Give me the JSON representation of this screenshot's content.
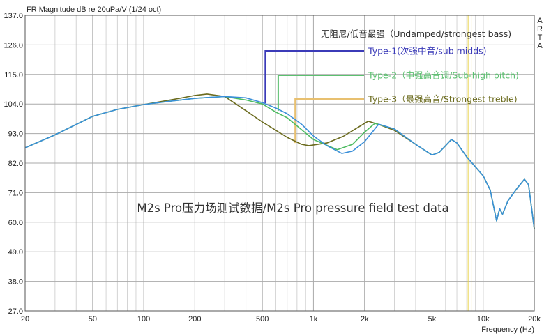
{
  "chart_data": {
    "type": "line",
    "title": "FR Magnitude dB re 20uPa/V (1/24 oct)",
    "xlabel": "Frequency (Hz)",
    "ylabel": "",
    "watermark": "ARTA",
    "annotation": "M2s Pro压力场测试数据/M2s Pro pressure field test data",
    "xscale": "log",
    "xlim": [
      20,
      20000
    ],
    "ylim": [
      27,
      137
    ],
    "grid": true,
    "x_ticks": [
      {
        "v": 20,
        "label": "20"
      },
      {
        "v": 50,
        "label": "50"
      },
      {
        "v": 100,
        "label": "100"
      },
      {
        "v": 200,
        "label": "200"
      },
      {
        "v": 500,
        "label": "500"
      },
      {
        "v": 1000,
        "label": "1k"
      },
      {
        "v": 2000,
        "label": "2k"
      },
      {
        "v": 5000,
        "label": "5k"
      },
      {
        "v": 10000,
        "label": "10k"
      },
      {
        "v": 20000,
        "label": "20k"
      }
    ],
    "y_ticks": [
      {
        "v": 137,
        "label": "137.0"
      },
      {
        "v": 126,
        "label": "126.0"
      },
      {
        "v": 115,
        "label": "115.0"
      },
      {
        "v": 104,
        "label": "104.0"
      },
      {
        "v": 93,
        "label": "93.0"
      },
      {
        "v": 82,
        "label": "82.0"
      },
      {
        "v": 71,
        "label": "71.0"
      },
      {
        "v": 60,
        "label": "60.0"
      },
      {
        "v": 49,
        "label": "49.0"
      },
      {
        "v": 38,
        "label": "38.0"
      },
      {
        "v": 27,
        "label": "27.0"
      }
    ],
    "legend_heading": "无阻尼/低音最强（Undamped/strongest bass)",
    "series": [
      {
        "name": "Type-1(次强中音/sub midds)",
        "color": "#3a8fd9",
        "legend_color": "#3b3bb8",
        "marker_freq": 520,
        "marker_db": 104.3,
        "x": [
          20,
          30,
          50,
          70,
          100,
          150,
          200,
          250,
          300,
          400,
          500,
          600,
          700,
          850,
          1000,
          1200,
          1470,
          1700,
          2000,
          2425,
          3000,
          4000,
          5000,
          5500,
          6500,
          7000,
          8000,
          10000,
          11000,
          12000,
          12500,
          13000,
          14000,
          16000,
          17500,
          18500,
          20000
        ],
        "y": [
          87.7,
          92.5,
          99.4,
          102,
          103.8,
          105.2,
          106.1,
          106.5,
          106.8,
          106.3,
          104.5,
          102.5,
          100.4,
          96.5,
          92.1,
          88.5,
          85.6,
          86.5,
          90,
          96.5,
          94.7,
          89,
          85,
          86,
          90.8,
          89.5,
          84.3,
          77.3,
          72,
          60.5,
          65,
          63,
          68,
          73,
          76,
          74,
          57.6
        ]
      },
      {
        "name": "Type-2（中强高音调/Sub-high pitch)",
        "color": "#4cbb60",
        "legend_color": "#5cc070",
        "marker_freq": 620,
        "marker_db": 101.5,
        "x": [
          20,
          30,
          50,
          70,
          100,
          150,
          200,
          250,
          300,
          400,
          500,
          600,
          700,
          1000,
          1380,
          1700,
          2000,
          2300,
          3000,
          4000,
          5000,
          5500,
          6500,
          7000,
          8000,
          10000,
          11000,
          12000,
          12500,
          13000,
          14000,
          16000,
          17500,
          18500,
          20000
        ],
        "y": [
          87.7,
          92.5,
          99.4,
          102,
          103.8,
          105.2,
          106.1,
          106.5,
          106.8,
          105.5,
          104,
          101,
          98.9,
          90.8,
          87,
          89,
          93.5,
          96.8,
          94.7,
          89,
          85,
          86,
          90.8,
          89.5,
          84.3,
          77.3,
          72,
          60.5,
          65,
          63,
          68,
          73,
          76,
          74,
          57.6
        ]
      },
      {
        "name": "Type-3（最强高音/Strongest treble)",
        "color": "#6b6b1e",
        "legend_color": "#e8c070",
        "marker_freq": 780,
        "marker_db": 89.5,
        "x": [
          20,
          30,
          50,
          70,
          100,
          150,
          200,
          236,
          300,
          400,
          500,
          700,
          850,
          940,
          1200,
          1500,
          2100,
          2400,
          3000,
          4000,
          5000,
          5500,
          6500,
          7000,
          8000,
          10000,
          11000,
          12000,
          12500,
          13000,
          14000,
          16000,
          17500,
          18500,
          20000
        ],
        "y": [
          87.7,
          92.5,
          99.4,
          102,
          103.8,
          105.7,
          107.2,
          107.7,
          106.8,
          101.5,
          97.3,
          91.6,
          89,
          88.5,
          89.5,
          92,
          97.6,
          96.5,
          94.2,
          89,
          85,
          86,
          90.8,
          89.5,
          84.3,
          77.3,
          72,
          60.5,
          65,
          63,
          68,
          73,
          76,
          74,
          57.6
        ]
      }
    ]
  }
}
